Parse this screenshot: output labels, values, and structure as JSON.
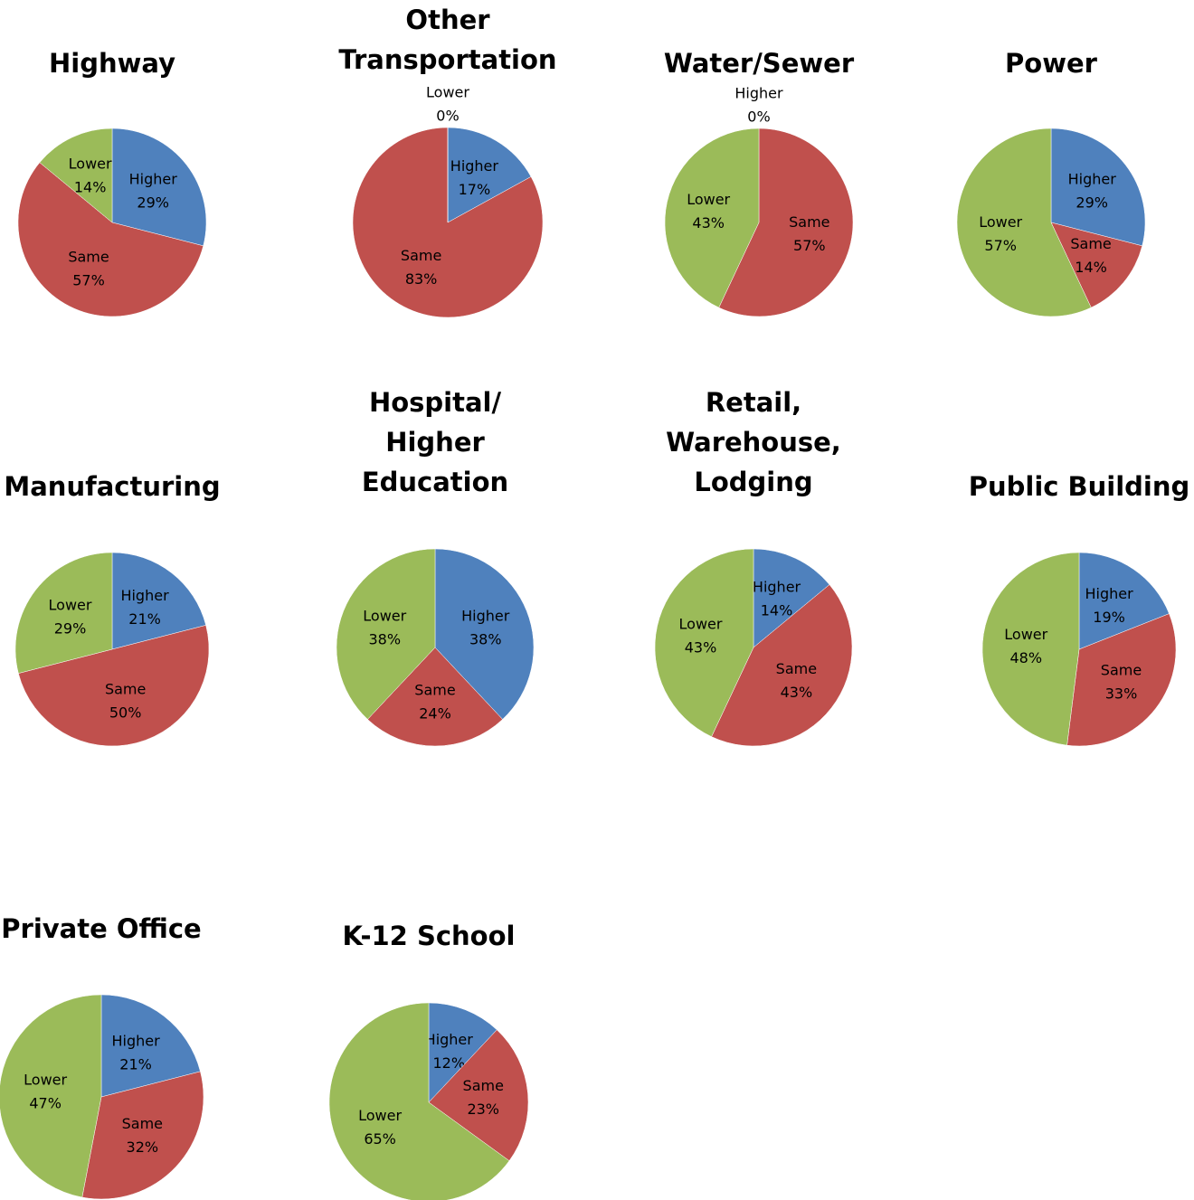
{
  "chart_data": [
    {
      "type": "pie",
      "title": "Highway",
      "categories": [
        "Higher",
        "Same",
        "Lower"
      ],
      "values": [
        29,
        57,
        14
      ],
      "value_labels": [
        "29%",
        "57%",
        "14%"
      ],
      "colors": [
        "#4f81bd",
        "#c0504d",
        "#9bbb59"
      ]
    },
    {
      "type": "pie",
      "title": "Other Transportation",
      "categories": [
        "Higher",
        "Same",
        "Lower"
      ],
      "values": [
        17,
        83,
        0
      ],
      "value_labels": [
        "17%",
        "83%",
        "0%"
      ],
      "colors": [
        "#4f81bd",
        "#c0504d",
        "#9bbb59"
      ]
    },
    {
      "type": "pie",
      "title": "Water/Sewer",
      "categories": [
        "Higher",
        "Same",
        "Lower"
      ],
      "values": [
        0,
        57,
        43
      ],
      "value_labels": [
        "0%",
        "57%",
        "43%"
      ],
      "colors": [
        "#4f81bd",
        "#c0504d",
        "#9bbb59"
      ]
    },
    {
      "type": "pie",
      "title": "Power",
      "categories": [
        "Higher",
        "Same",
        "Lower"
      ],
      "values": [
        29,
        14,
        57
      ],
      "value_labels": [
        "29%",
        "14%",
        "57%"
      ],
      "colors": [
        "#4f81bd",
        "#c0504d",
        "#9bbb59"
      ]
    },
    {
      "type": "pie",
      "title": "Manufacturing",
      "categories": [
        "Higher",
        "Same",
        "Lower"
      ],
      "values": [
        21,
        50,
        29
      ],
      "value_labels": [
        "21%",
        "50%",
        "29%"
      ],
      "colors": [
        "#4f81bd",
        "#c0504d",
        "#9bbb59"
      ]
    },
    {
      "type": "pie",
      "title": "Hospital/ Higher Education",
      "categories": [
        "Higher",
        "Same",
        "Lower"
      ],
      "values": [
        38,
        24,
        38
      ],
      "value_labels": [
        "38%",
        "24%",
        "38%"
      ],
      "colors": [
        "#4f81bd",
        "#c0504d",
        "#9bbb59"
      ]
    },
    {
      "type": "pie",
      "title": "Retail, Warehouse, Lodging",
      "categories": [
        "Higher",
        "Same",
        "Lower"
      ],
      "values": [
        14,
        43,
        43
      ],
      "value_labels": [
        "14%",
        "43%",
        "43%"
      ],
      "colors": [
        "#4f81bd",
        "#c0504d",
        "#9bbb59"
      ]
    },
    {
      "type": "pie",
      "title": "Public Building",
      "categories": [
        "Higher",
        "Same",
        "Lower"
      ],
      "values": [
        19,
        33,
        48
      ],
      "value_labels": [
        "19%",
        "33%",
        "48%"
      ],
      "colors": [
        "#4f81bd",
        "#c0504d",
        "#9bbb59"
      ]
    },
    {
      "type": "pie",
      "title": "Private Office",
      "categories": [
        "Higher",
        "Same",
        "Lower"
      ],
      "values": [
        21,
        32,
        47
      ],
      "value_labels": [
        "21%",
        "32%",
        "47%"
      ],
      "colors": [
        "#4f81bd",
        "#c0504d",
        "#9bbb59"
      ]
    },
    {
      "type": "pie",
      "title": "K-12 School",
      "categories": [
        "Higher",
        "Same",
        "Lower"
      ],
      "values": [
        12,
        23,
        65
      ],
      "value_labels": [
        "12%",
        "23%",
        "65%"
      ],
      "colors": [
        "#4f81bd",
        "#c0504d",
        "#9bbb59"
      ]
    }
  ]
}
